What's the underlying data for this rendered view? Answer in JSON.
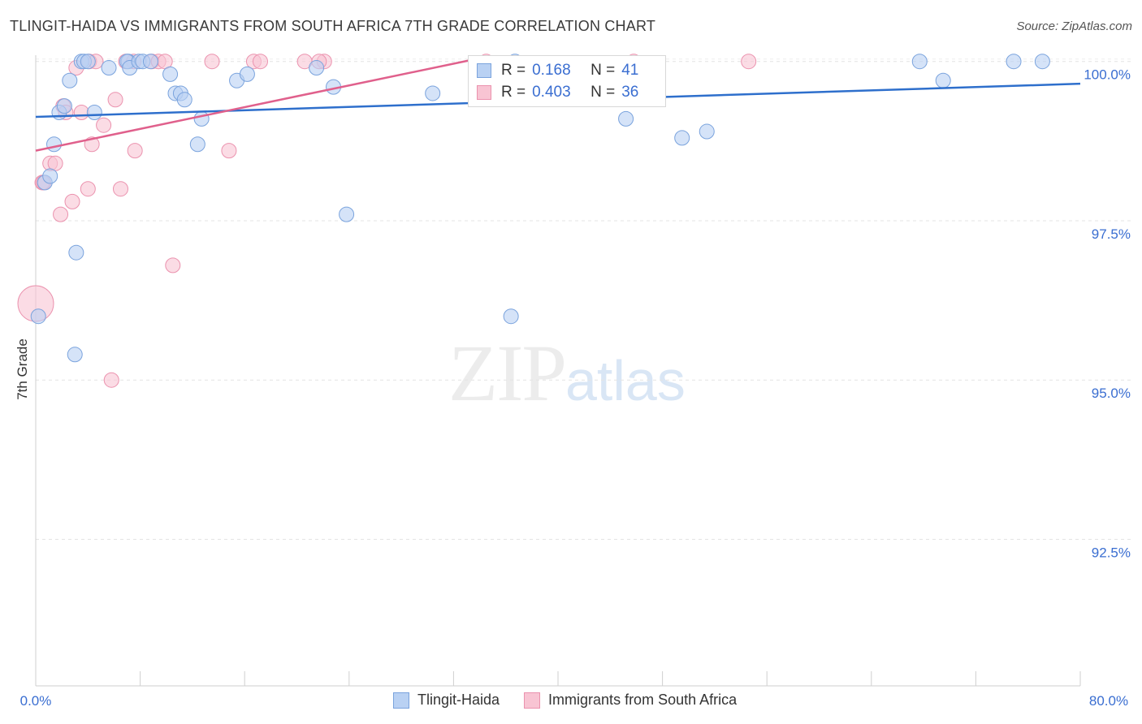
{
  "header": {
    "title": "TLINGIT-HAIDA VS IMMIGRANTS FROM SOUTH AFRICA 7TH GRADE CORRELATION CHART",
    "source": "Source: ZipAtlas.com"
  },
  "watermark": {
    "zip": "ZIP",
    "atlas": "atlas"
  },
  "legend_box": {
    "rows": [
      {
        "r_label": "R =",
        "r_value": "0.168",
        "n_label": "N =",
        "n_value": "41"
      },
      {
        "r_label": "R =",
        "r_value": "0.403",
        "n_label": "N =",
        "n_value": "36"
      }
    ]
  },
  "bottom_legend": {
    "items": [
      {
        "label": "Tlingit-Haida"
      },
      {
        "label": "Immigrants from South Africa"
      }
    ]
  },
  "colors": {
    "blue_fill": "#b9d1f3",
    "blue_stroke": "#7aa3dd",
    "blue_line": "#2e6fcc",
    "pink_fill": "#f8c4d3",
    "pink_stroke": "#eb92ae",
    "pink_line": "#e0608c",
    "axis_text": "#3a6ed1"
  },
  "chart_data": {
    "type": "scatter",
    "title": "TLINGIT-HAIDA VS IMMIGRANTS FROM SOUTH AFRICA 7TH GRADE CORRELATION CHART",
    "xlabel": "",
    "ylabel": "7th Grade",
    "xlim": [
      0,
      80
    ],
    "ylim": [
      90.2,
      100.2
    ],
    "x_tick_labels": [
      "0.0%",
      "80.0%"
    ],
    "y_ticks": [
      100.0,
      97.5,
      95.0,
      92.5
    ],
    "y_tick_labels": [
      "100.0%",
      "97.5%",
      "95.0%",
      "92.5%"
    ],
    "grid": true,
    "series": [
      {
        "name": "Tlingit-Haida",
        "r": 0.168,
        "n": 41,
        "trendline": {
          "x": [
            0,
            80
          ],
          "y": [
            99.13,
            99.65
          ]
        },
        "points": [
          [
            0.2,
            96.0
          ],
          [
            0.7,
            98.1
          ],
          [
            1.1,
            98.2
          ],
          [
            1.4,
            98.7
          ],
          [
            1.8,
            99.2
          ],
          [
            2.2,
            99.3
          ],
          [
            2.6,
            99.7
          ],
          [
            3.1,
            97.0
          ],
          [
            3.5,
            100.0
          ],
          [
            3.7,
            100.0
          ],
          [
            4.5,
            99.2
          ],
          [
            4.0,
            100.0
          ],
          [
            5.6,
            99.9
          ],
          [
            7.1,
            100.0
          ],
          [
            7.0,
            100.0
          ],
          [
            7.2,
            99.9
          ],
          [
            7.9,
            100.0
          ],
          [
            8.2,
            100.0
          ],
          [
            8.8,
            100.0
          ],
          [
            10.3,
            99.8
          ],
          [
            10.7,
            99.5
          ],
          [
            11.1,
            99.5
          ],
          [
            11.4,
            99.4
          ],
          [
            12.4,
            98.7
          ],
          [
            12.7,
            99.1
          ],
          [
            15.4,
            99.7
          ],
          [
            16.2,
            99.8
          ],
          [
            21.5,
            99.9
          ],
          [
            22.8,
            99.6
          ],
          [
            23.8,
            97.6
          ],
          [
            30.4,
            99.5
          ],
          [
            36.4,
            96.0
          ],
          [
            36.7,
            100.0
          ],
          [
            45.2,
            99.1
          ],
          [
            49.5,
            98.8
          ],
          [
            51.4,
            98.9
          ],
          [
            67.7,
            100.0
          ],
          [
            69.5,
            99.7
          ],
          [
            74.9,
            100.0
          ],
          [
            77.1,
            100.0
          ],
          [
            3.0,
            95.4
          ]
        ]
      },
      {
        "name": "Immigrants from South Africa",
        "r": 0.403,
        "n": 36,
        "trendline": {
          "x": [
            0,
            34
          ],
          "y": [
            98.6,
            100.05
          ]
        },
        "points": [
          [
            0.0,
            96.2
          ],
          [
            0.5,
            98.1
          ],
          [
            0.6,
            98.1
          ],
          [
            1.1,
            98.4
          ],
          [
            1.5,
            98.4
          ],
          [
            1.9,
            97.6
          ],
          [
            2.1,
            99.3
          ],
          [
            2.3,
            99.2
          ],
          [
            2.8,
            97.8
          ],
          [
            3.1,
            99.9
          ],
          [
            3.5,
            99.2
          ],
          [
            4.1,
            100.0
          ],
          [
            4.3,
            98.7
          ],
          [
            4.6,
            100.0
          ],
          [
            5.2,
            99.0
          ],
          [
            6.5,
            98.0
          ],
          [
            6.1,
            99.4
          ],
          [
            6.9,
            100.0
          ],
          [
            7.6,
            98.6
          ],
          [
            7.5,
            100.0
          ],
          [
            8.9,
            100.0
          ],
          [
            9.4,
            100.0
          ],
          [
            9.9,
            100.0
          ],
          [
            10.5,
            96.8
          ],
          [
            13.5,
            100.0
          ],
          [
            14.8,
            98.6
          ],
          [
            16.7,
            100.0
          ],
          [
            17.2,
            100.0
          ],
          [
            20.6,
            100.0
          ],
          [
            22.1,
            100.0
          ],
          [
            21.7,
            100.0
          ],
          [
            34.5,
            100.0
          ],
          [
            45.8,
            100.0
          ],
          [
            54.6,
            100.0
          ],
          [
            5.8,
            95.0
          ],
          [
            4.0,
            98.0
          ]
        ]
      }
    ]
  }
}
